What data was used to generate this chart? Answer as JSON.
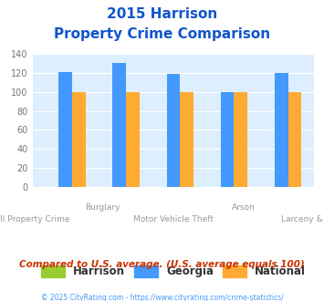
{
  "title_line1": "2015 Harrison",
  "title_line2": "Property Crime Comparison",
  "categories": [
    "All Property Crime",
    "Burglary",
    "Motor Vehicle Theft",
    "Arson",
    "Larceny & Theft"
  ],
  "x_labels_row1": [
    "",
    "Burglary",
    "",
    "Arson",
    ""
  ],
  "x_labels_row2": [
    "All Property Crime",
    "",
    "Motor Vehicle Theft",
    "",
    "Larceny & Theft"
  ],
  "harrison": [
    0,
    0,
    0,
    0,
    0
  ],
  "georgia": [
    121,
    131,
    119,
    100,
    120
  ],
  "national": [
    100,
    100,
    100,
    100,
    100
  ],
  "harrison_color": "#99cc33",
  "georgia_color": "#4499ff",
  "national_color": "#ffaa33",
  "bg_color": "#ddeeff",
  "title_color": "#1155cc",
  "subtitle_text": "Compared to U.S. average. (U.S. average equals 100)",
  "subtitle_color": "#cc3300",
  "footer_text": "© 2025 CityRating.com - https://www.cityrating.com/crime-statistics/",
  "footer_color": "#4499ff",
  "ylim": [
    0,
    140
  ],
  "yticks": [
    0,
    20,
    40,
    60,
    80,
    100,
    120,
    140
  ],
  "bar_width": 0.25,
  "legend_labels": [
    "Harrison",
    "Georgia",
    "National"
  ]
}
